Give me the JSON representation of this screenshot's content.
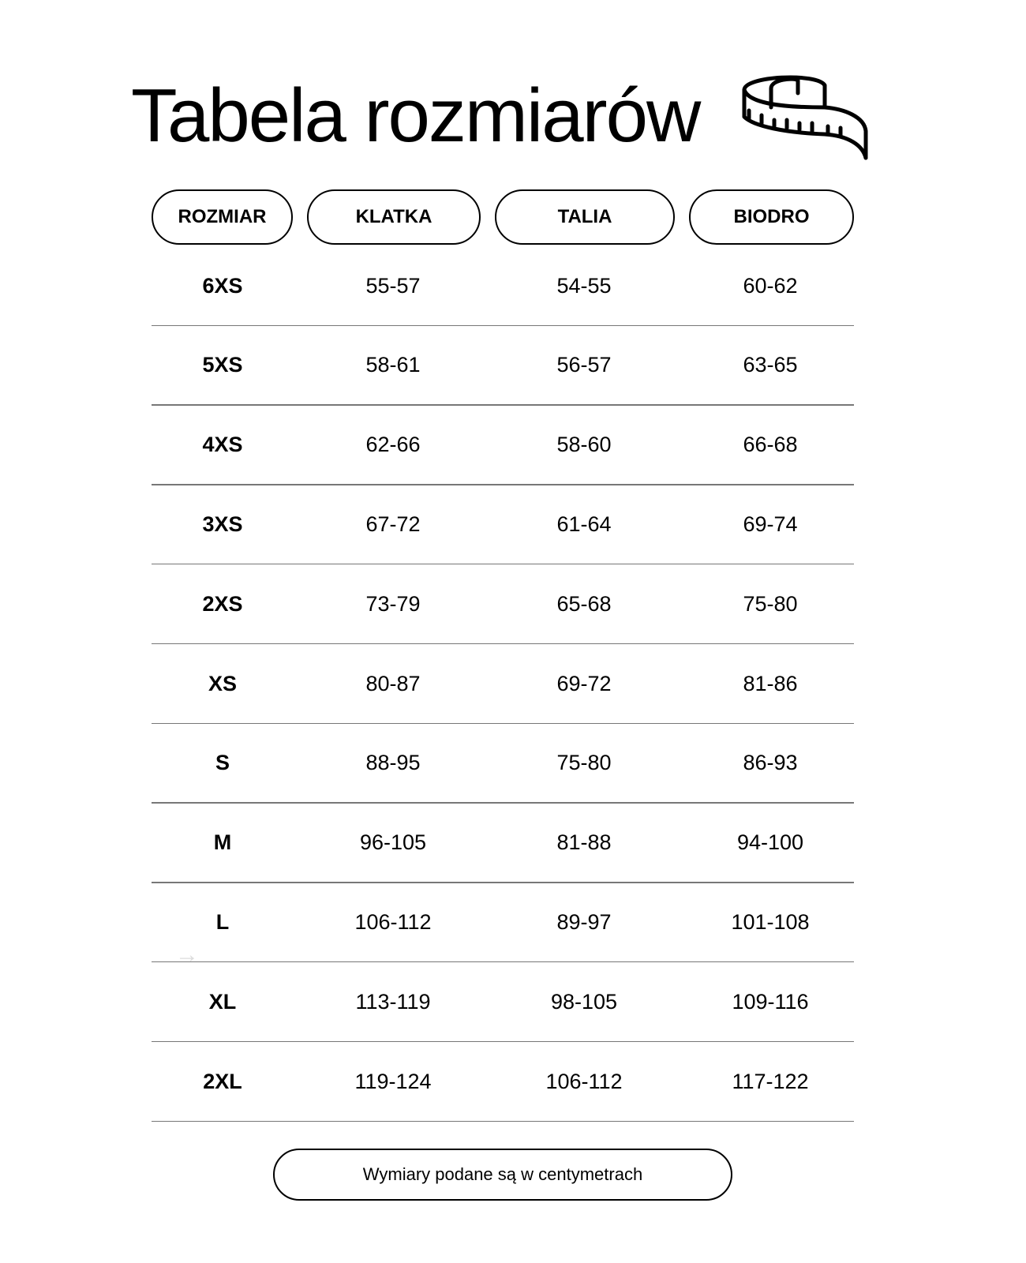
{
  "title": "Tabela rozmiarów",
  "icon": "measuring-tape-icon",
  "headers": [
    "ROZMIAR",
    "KLATKA",
    "TALIA",
    "BIODRO"
  ],
  "rows": [
    [
      "6XS",
      "55-57",
      "54-55",
      "60-62"
    ],
    [
      "5XS",
      "58-61",
      "56-57",
      "63-65"
    ],
    [
      "4XS",
      "62-66",
      "58-60",
      "66-68"
    ],
    [
      "3XS",
      "67-72",
      "61-64",
      "69-74"
    ],
    [
      "2XS",
      "73-79",
      "65-68",
      "75-80"
    ],
    [
      "XS",
      "80-87",
      "69-72",
      "81-86"
    ],
    [
      "S",
      "88-95",
      "75-80",
      "86-93"
    ],
    [
      "M",
      "96-105",
      "81-88",
      "94-100"
    ],
    [
      "L",
      "106-112",
      "89-97",
      "101-108"
    ],
    [
      "XL",
      "113-119",
      "98-105",
      "109-116"
    ],
    [
      "2XL",
      "119-124",
      "106-112",
      "117-122"
    ]
  ],
  "note": "Wymiary podane są w centymetrach"
}
